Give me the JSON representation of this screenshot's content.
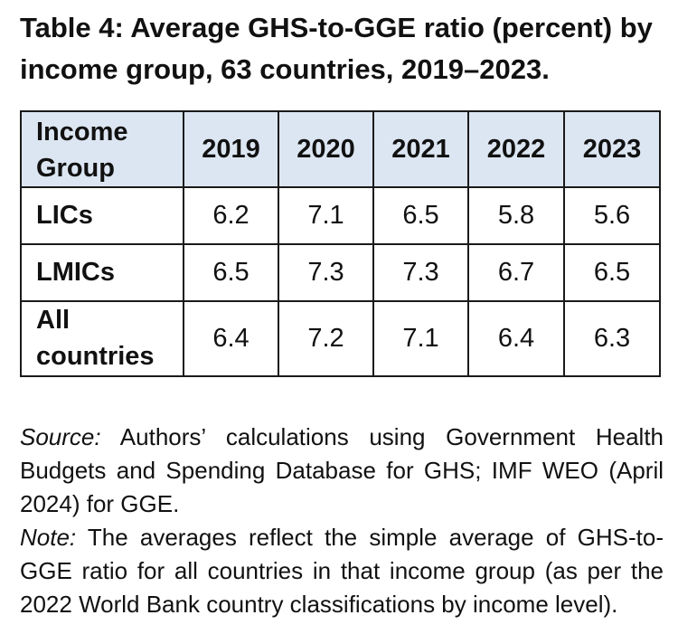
{
  "title": "Table 4: Average GHS-to-GGE ratio (percent) by income group, 63 countries, 2019–2023.",
  "table": {
    "corner_label": "Income Group",
    "years": [
      "2019",
      "2020",
      "2021",
      "2022",
      "2023"
    ],
    "rows": [
      {
        "label": "LICs",
        "values": [
          "6.2",
          "7.1",
          "6.5",
          "5.8",
          "5.6"
        ]
      },
      {
        "label": "LMICs",
        "values": [
          "6.5",
          "7.3",
          "7.3",
          "6.7",
          "6.5"
        ]
      },
      {
        "label": "All countries",
        "values": [
          "6.4",
          "7.2",
          "7.1",
          "6.4",
          "6.3"
        ]
      }
    ]
  },
  "source": {
    "label": "Source:",
    "text": " Authors’ calculations using Government Health Budgets and Spending Database for GHS; IMF WEO (April 2024) for GGE."
  },
  "note": {
    "label": "Note:",
    "text": " The averages reflect the simple average of GHS-to-GGE ratio for all countries in that income group (as per the 2022 World Bank country classifications by income level)."
  }
}
